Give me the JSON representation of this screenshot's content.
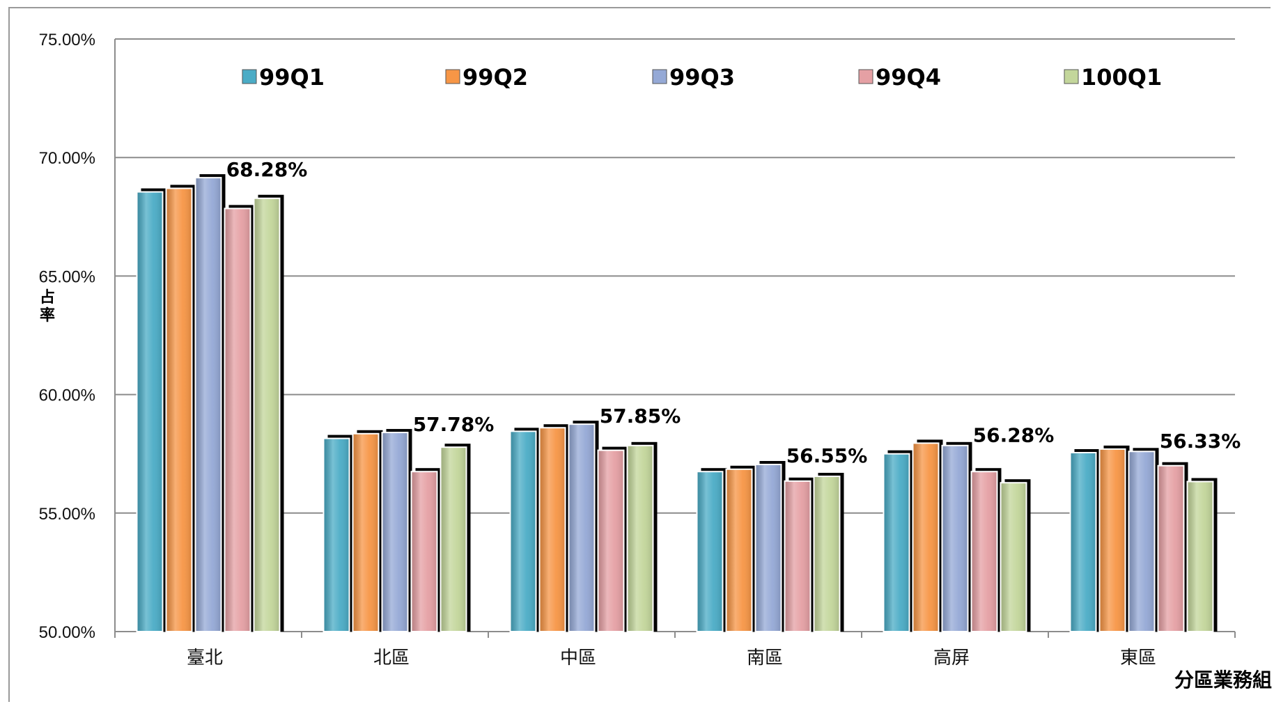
{
  "chart_data": {
    "type": "bar",
    "ylabel": "占率",
    "xlabel": "分區業務組",
    "ylim": [
      0.5,
      0.75
    ],
    "yticks": [
      "50.00%",
      "55.00%",
      "60.00%",
      "65.00%",
      "70.00%",
      "75.00%"
    ],
    "categories": [
      "臺北",
      "北區",
      "中區",
      "南區",
      "高屏",
      "東區"
    ],
    "series": [
      {
        "name": "99Q1",
        "color": "#4bacc6",
        "values": [
          0.6855,
          0.5815,
          0.5845,
          0.5675,
          0.575,
          0.5755
        ]
      },
      {
        "name": "99Q2",
        "color": "#f79646",
        "values": [
          0.687,
          0.5835,
          0.586,
          0.5685,
          0.5795,
          0.577
        ]
      },
      {
        "name": "99Q3",
        "color": "#95a9d6",
        "values": [
          0.6915,
          0.584,
          0.5875,
          0.5705,
          0.5785,
          0.576
        ]
      },
      {
        "name": "99Q4",
        "color": "#e5a0a4",
        "values": [
          0.6785,
          0.5675,
          0.5765,
          0.5635,
          0.5675,
          0.57
        ]
      },
      {
        "name": "100Q1",
        "color": "#c3d69b",
        "values": [
          0.6828,
          0.5778,
          0.5785,
          0.5655,
          0.5628,
          0.5633
        ]
      }
    ],
    "data_labels": [
      "68.28%",
      "57.78%",
      "57.85%",
      "56.55%",
      "56.28%",
      "56.33%"
    ],
    "grid": true,
    "legend_position": "top"
  }
}
